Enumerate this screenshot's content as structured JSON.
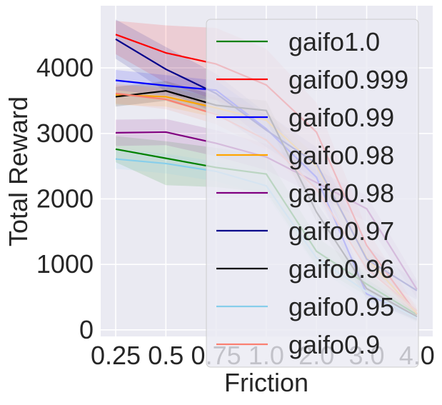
{
  "chart_data": {
    "type": "line",
    "xlabel": "Friction",
    "ylabel": "Total Reward",
    "categories": [
      "0.25",
      "0.5",
      "0.75",
      "1.0",
      "2.0",
      "3.0",
      "4.0"
    ],
    "ylim": [
      -100,
      4950
    ],
    "yticks": [
      0,
      1000,
      2000,
      3000,
      4000
    ],
    "grid": true,
    "legend_position": "right",
    "background": "#eaeaf2",
    "series": [
      {
        "name": "gaifo1.0",
        "color": "#008000",
        "values": [
          2760,
          2620,
          2480,
          2380,
          1200,
          700,
          230
        ],
        "lower": [
          2560,
          2210,
          2180,
          2100,
          980,
          520,
          150
        ],
        "upper": [
          2960,
          2880,
          2780,
          2660,
          1420,
          880,
          310
        ]
      },
      {
        "name": "gaifo0.999",
        "color": "#ff0000",
        "values": [
          4510,
          4230,
          4060,
          3740,
          3020,
          1290,
          240
        ],
        "lower": [
          4210,
          3770,
          3510,
          3190,
          2570,
          1040,
          150
        ],
        "upper": [
          4720,
          4650,
          4610,
          4290,
          3470,
          1540,
          330
        ]
      },
      {
        "name": "gaifo0.99",
        "color": "#0000ff",
        "values": [
          3810,
          3730,
          3660,
          3070,
          2330,
          550,
          200
        ],
        "lower": [
          3660,
          3580,
          3510,
          2870,
          2130,
          450,
          150
        ],
        "upper": [
          3970,
          3890,
          3810,
          3270,
          2530,
          650,
          250
        ]
      },
      {
        "name": "gaifo0.98",
        "color": "#ffa500",
        "values": [
          3590,
          3560,
          3390,
          3200,
          2500,
          1100,
          250
        ],
        "lower": [
          3440,
          3410,
          3240,
          3050,
          2350,
          950,
          180
        ],
        "upper": [
          3740,
          3710,
          3540,
          3350,
          2650,
          1250,
          320
        ]
      },
      {
        "name": "gaifo0.98",
        "color": "#800080",
        "values": [
          3010,
          3020,
          2850,
          2640,
          2250,
          1850,
          620
        ],
        "lower": [
          2810,
          2820,
          2650,
          2440,
          2050,
          1650,
          480
        ],
        "upper": [
          3210,
          3220,
          3050,
          2840,
          2450,
          2050,
          760
        ]
      },
      {
        "name": "gaifo0.97",
        "color": "#00008b",
        "values": [
          4440,
          3980,
          3610,
          3050,
          2540,
          1080,
          600
        ],
        "lower": [
          4140,
          3640,
          3310,
          2790,
          2290,
          880,
          460
        ],
        "upper": [
          4740,
          4320,
          3910,
          3310,
          2790,
          1280,
          740
        ]
      },
      {
        "name": "gaifo0.96",
        "color": "#000000",
        "values": [
          3560,
          3650,
          3430,
          3350,
          1800,
          630,
          200
        ],
        "lower": [
          3410,
          3500,
          3280,
          3200,
          1650,
          480,
          130
        ],
        "upper": [
          3710,
          3800,
          3580,
          3500,
          1950,
          780,
          270
        ]
      },
      {
        "name": "gaifo0.95",
        "color": "#87ceeb",
        "values": [
          2610,
          2540,
          2420,
          2200,
          1100,
          580,
          180
        ],
        "lower": [
          2460,
          2390,
          2270,
          2050,
          950,
          430,
          110
        ],
        "upper": [
          2760,
          2690,
          2570,
          2350,
          1250,
          730,
          250
        ]
      },
      {
        "name": "gaifo0.9",
        "color": "#fa8072",
        "values": [
          3610,
          3520,
          3290,
          2900,
          2150,
          940,
          290
        ],
        "lower": [
          3460,
          3370,
          3140,
          2750,
          2000,
          790,
          200
        ],
        "upper": [
          3760,
          3670,
          3440,
          3050,
          2300,
          1090,
          380
        ]
      }
    ]
  }
}
